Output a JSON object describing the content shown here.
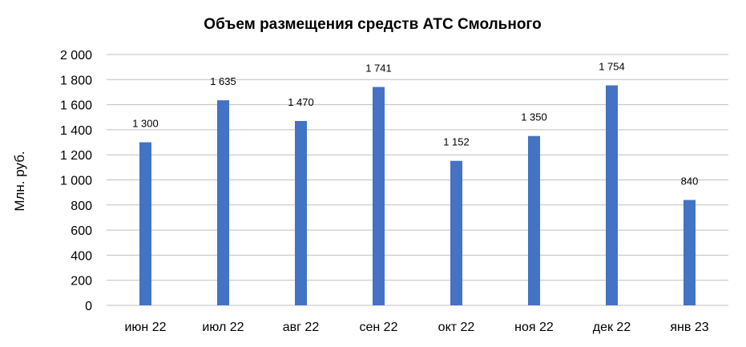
{
  "chart_data": {
    "type": "bar",
    "title": "Объем размещения средств АТС Смольного",
    "xlabel": "",
    "ylabel": "Млн. руб.",
    "categories": [
      "июн 22",
      "июл 22",
      "авг 22",
      "сен 22",
      "окт 22",
      "ноя 22",
      "дек 22",
      "янв 23"
    ],
    "values": [
      1300,
      1635,
      1470,
      1741,
      1152,
      1350,
      1754,
      840
    ],
    "value_labels": [
      "1 300",
      "1 635",
      "1 470",
      "1 741",
      "1 152",
      "1 350",
      "1 754",
      "840"
    ],
    "ylim": [
      0,
      2000
    ],
    "yticks": [
      0,
      200,
      400,
      600,
      800,
      1000,
      1200,
      1400,
      1600,
      1800,
      2000
    ],
    "ytick_labels": [
      "0",
      "200",
      "400",
      "600",
      "800",
      "1 000",
      "1 200",
      "1 400",
      "1 600",
      "1 800",
      "2 000"
    ],
    "grid": true,
    "bar_color": "#4472c4"
  }
}
